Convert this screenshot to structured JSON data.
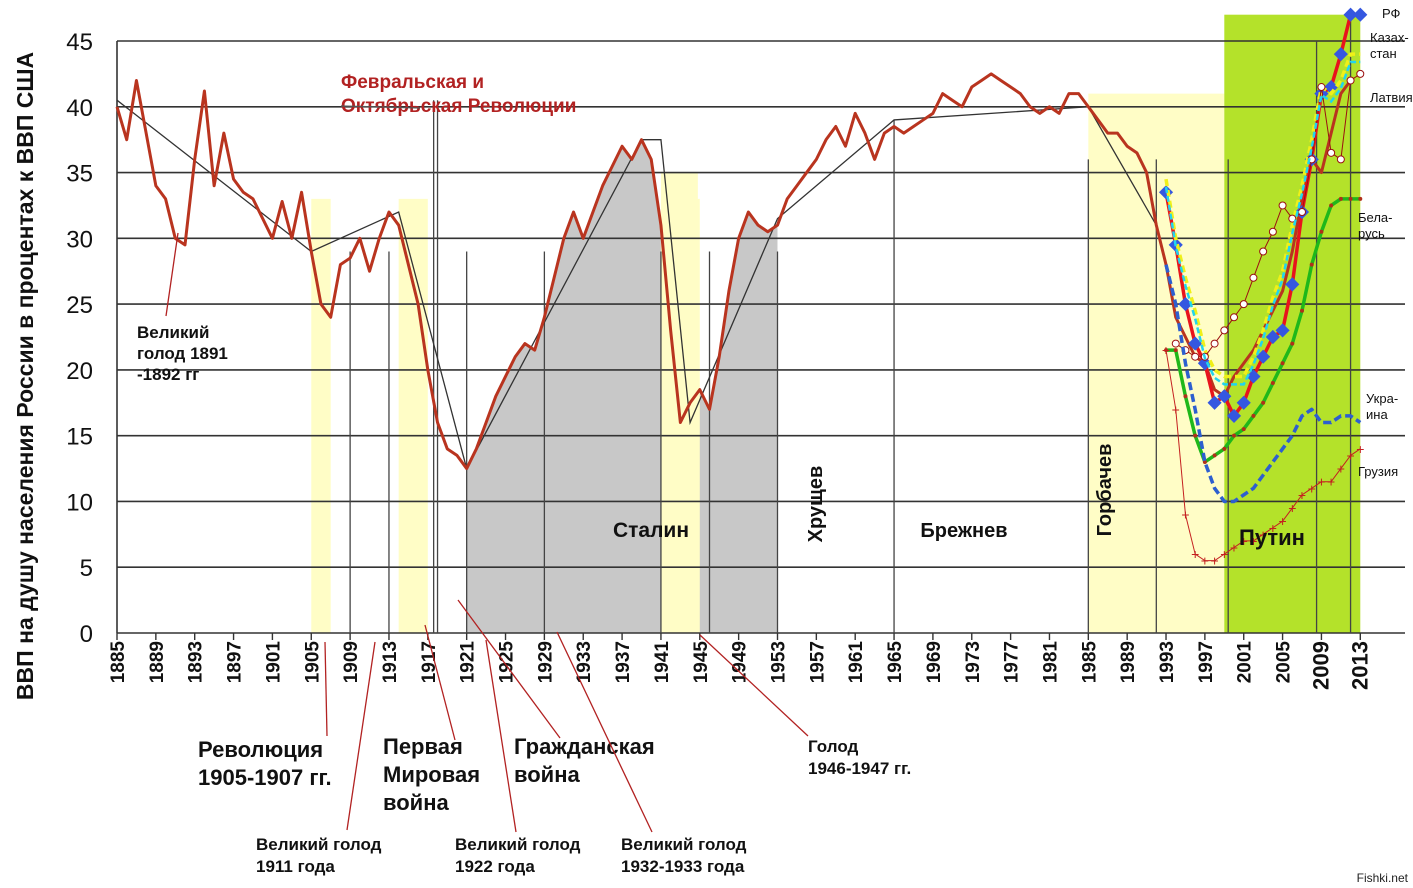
{
  "chart_data": {
    "type": "line",
    "ylabel": "ВВП на душу населения России в процентах к ВВП США",
    "ylim": [
      0,
      45
    ],
    "xlim": [
      1885,
      2014
    ],
    "grid": "horizontal",
    "yticks": [
      0,
      5,
      10,
      15,
      20,
      25,
      30,
      35,
      40,
      45
    ],
    "xticks": [
      1885,
      1889,
      1893,
      1897,
      1901,
      1905,
      1909,
      1913,
      1917,
      1921,
      1925,
      1929,
      1933,
      1937,
      1941,
      1945,
      1949,
      1953,
      1957,
      1961,
      1965,
      1969,
      1973,
      1977,
      1981,
      1985,
      1989,
      1993,
      1997,
      2001,
      2005,
      2009,
      2013
    ],
    "xticks_big": [
      2009,
      2013
    ],
    "series": [
      {
        "name": "Россия",
        "color": "#b9341f",
        "label_shown": false,
        "points": [
          [
            1885,
            40
          ],
          [
            1886,
            37.5
          ],
          [
            1887,
            42
          ],
          [
            1888,
            38
          ],
          [
            1889,
            34
          ],
          [
            1890,
            33
          ],
          [
            1891,
            30
          ],
          [
            1892,
            29.5
          ],
          [
            1893,
            36
          ],
          [
            1894,
            41.2
          ],
          [
            1895,
            34
          ],
          [
            1896,
            38
          ],
          [
            1897,
            34.5
          ],
          [
            1898,
            33.5
          ],
          [
            1899,
            33
          ],
          [
            1900,
            31.5
          ],
          [
            1901,
            30
          ],
          [
            1902,
            32.8
          ],
          [
            1903,
            30
          ],
          [
            1904,
            33.5
          ],
          [
            1905,
            29
          ],
          [
            1906,
            25
          ],
          [
            1907,
            24
          ],
          [
            1908,
            28
          ],
          [
            1909,
            28.5
          ],
          [
            1910,
            30
          ],
          [
            1911,
            27.5
          ],
          [
            1912,
            30
          ],
          [
            1913,
            32
          ],
          [
            1914,
            31
          ],
          [
            1915,
            28
          ],
          [
            1916,
            25
          ],
          [
            1917,
            20
          ],
          [
            1918,
            16
          ],
          [
            1919,
            14
          ],
          [
            1920,
            13.5
          ],
          [
            1921,
            12.5
          ],
          [
            1922,
            14
          ],
          [
            1923,
            16
          ],
          [
            1924,
            18
          ],
          [
            1925,
            19.5
          ],
          [
            1926,
            21
          ],
          [
            1927,
            22
          ],
          [
            1928,
            21.5
          ],
          [
            1929,
            24
          ],
          [
            1930,
            27
          ],
          [
            1931,
            30
          ],
          [
            1932,
            32
          ],
          [
            1933,
            30
          ],
          [
            1934,
            32
          ],
          [
            1935,
            34
          ],
          [
            1936,
            35.5
          ],
          [
            1937,
            37
          ],
          [
            1938,
            36
          ],
          [
            1939,
            37.5
          ],
          [
            1940,
            36
          ],
          [
            1941,
            31
          ],
          [
            1942,
            23
          ],
          [
            1943,
            16
          ],
          [
            1944,
            17.5
          ],
          [
            1945,
            18.5
          ],
          [
            1946,
            17
          ],
          [
            1947,
            21
          ],
          [
            1948,
            26
          ],
          [
            1949,
            30
          ],
          [
            1950,
            32
          ],
          [
            1951,
            31
          ],
          [
            1952,
            30.5
          ],
          [
            1953,
            31
          ],
          [
            1954,
            33
          ],
          [
            1955,
            34
          ],
          [
            1956,
            35
          ],
          [
            1957,
            36
          ],
          [
            1958,
            37.5
          ],
          [
            1959,
            38.5
          ],
          [
            1960,
            37
          ],
          [
            1961,
            39.5
          ],
          [
            1962,
            38
          ],
          [
            1963,
            36
          ],
          [
            1964,
            38
          ],
          [
            1965,
            38.5
          ],
          [
            1966,
            38
          ],
          [
            1967,
            38.5
          ],
          [
            1968,
            39
          ],
          [
            1969,
            39.5
          ],
          [
            1970,
            41
          ],
          [
            1971,
            40.5
          ],
          [
            1972,
            40
          ],
          [
            1973,
            41.5
          ],
          [
            1974,
            42
          ],
          [
            1975,
            42.5
          ],
          [
            1976,
            42
          ],
          [
            1977,
            41.5
          ],
          [
            1978,
            41
          ],
          [
            1979,
            40
          ],
          [
            1980,
            39.5
          ],
          [
            1981,
            40
          ],
          [
            1982,
            39.5
          ],
          [
            1983,
            41
          ],
          [
            1984,
            41
          ],
          [
            1985,
            40
          ],
          [
            1986,
            39
          ],
          [
            1987,
            38
          ],
          [
            1988,
            38
          ],
          [
            1989,
            37
          ],
          [
            1990,
            36.5
          ],
          [
            1991,
            35
          ],
          [
            1992,
            31
          ],
          [
            1993,
            28
          ],
          [
            1994,
            24
          ],
          [
            1995,
            22.5
          ],
          [
            1996,
            21
          ],
          [
            1997,
            20.5
          ],
          [
            1998,
            18.5
          ],
          [
            1999,
            18
          ],
          [
            2000,
            19.5
          ],
          [
            2001,
            20.5
          ],
          [
            2002,
            21.5
          ],
          [
            2003,
            23
          ],
          [
            2004,
            24.5
          ],
          [
            2005,
            26
          ],
          [
            2006,
            29
          ],
          [
            2007,
            33
          ],
          [
            2008,
            36
          ],
          [
            2009,
            35
          ],
          [
            2010,
            38
          ],
          [
            2011,
            41
          ],
          [
            2012,
            42
          ]
        ]
      },
      {
        "name": "РФ",
        "color": "#e8141c",
        "label_shown": true,
        "label": "РФ",
        "points": [
          [
            1993,
            33.5
          ],
          [
            1994,
            29.5
          ],
          [
            1995,
            25
          ],
          [
            1996,
            22
          ],
          [
            1997,
            20.5
          ],
          [
            1998,
            17.5
          ],
          [
            1999,
            18
          ],
          [
            2000,
            16.5
          ],
          [
            2001,
            17.5
          ],
          [
            2002,
            19.5
          ],
          [
            2003,
            21
          ],
          [
            2004,
            22.5
          ],
          [
            2005,
            23
          ],
          [
            2006,
            26.5
          ],
          [
            2007,
            32
          ],
          [
            2008,
            36
          ],
          [
            2009,
            41
          ],
          [
            2010,
            41.5
          ],
          [
            2011,
            44
          ],
          [
            2012,
            47
          ],
          [
            2013,
            47
          ]
        ]
      },
      {
        "name": "Казахстан",
        "color": "#f0f018",
        "label_shown": true,
        "label": "Казах-\nстан",
        "points": [
          [
            1993,
            34.5
          ],
          [
            1994,
            30
          ],
          [
            1995,
            27
          ],
          [
            1996,
            24.5
          ],
          [
            1997,
            21.5
          ],
          [
            1998,
            20
          ],
          [
            1999,
            19.5
          ],
          [
            2000,
            19.5
          ],
          [
            2001,
            19.5
          ],
          [
            2002,
            21
          ],
          [
            2003,
            23
          ],
          [
            2004,
            25.5
          ],
          [
            2005,
            27.5
          ],
          [
            2006,
            31
          ],
          [
            2007,
            34
          ],
          [
            2008,
            37.5
          ],
          [
            2009,
            41.5
          ],
          [
            2010,
            41
          ],
          [
            2011,
            42
          ],
          [
            2012,
            44
          ],
          [
            2013,
            44
          ]
        ]
      },
      {
        "name": "Латвия",
        "color": "#9b1010",
        "label_shown": true,
        "label": "Латвия",
        "points": [
          [
            1994,
            22
          ],
          [
            1995,
            21.5
          ],
          [
            1996,
            21
          ],
          [
            1997,
            21
          ],
          [
            1998,
            22
          ],
          [
            1999,
            23
          ],
          [
            2000,
            24
          ],
          [
            2001,
            25
          ],
          [
            2002,
            27
          ],
          [
            2003,
            29
          ],
          [
            2004,
            30.5
          ],
          [
            2005,
            32.5
          ],
          [
            2006,
            31.5
          ],
          [
            2007,
            32
          ],
          [
            2008,
            36
          ],
          [
            2009,
            41.5
          ],
          [
            2010,
            36.5
          ],
          [
            2011,
            36
          ],
          [
            2012,
            42
          ],
          [
            2013,
            42.5
          ]
        ]
      },
      {
        "name": "Беларусь",
        "color": "#1fb81a",
        "label_shown": true,
        "label": "Бела-\nрусь",
        "points": [
          [
            1993,
            21.5
          ],
          [
            1994,
            21.5
          ],
          [
            1995,
            18
          ],
          [
            1996,
            15
          ],
          [
            1997,
            13
          ],
          [
            1998,
            13.5
          ],
          [
            1999,
            14
          ],
          [
            2000,
            15
          ],
          [
            2001,
            15.5
          ],
          [
            2002,
            16.5
          ],
          [
            2003,
            17.5
          ],
          [
            2004,
            19
          ],
          [
            2005,
            20.5
          ],
          [
            2006,
            22
          ],
          [
            2007,
            24.5
          ],
          [
            2008,
            28
          ],
          [
            2009,
            30.5
          ],
          [
            2010,
            32.5
          ],
          [
            2011,
            33
          ],
          [
            2012,
            33
          ],
          [
            2013,
            33
          ]
        ]
      },
      {
        "name": "Украина",
        "color": "#2d5fcf",
        "label_shown": true,
        "label": "Укра-\nина",
        "points": [
          [
            1993,
            28
          ],
          [
            1994,
            25
          ],
          [
            1995,
            20.5
          ],
          [
            1996,
            17
          ],
          [
            1997,
            13
          ],
          [
            1998,
            11
          ],
          [
            1999,
            10
          ],
          [
            2000,
            10
          ],
          [
            2001,
            10.5
          ],
          [
            2002,
            11
          ],
          [
            2003,
            12
          ],
          [
            2004,
            13
          ],
          [
            2005,
            14
          ],
          [
            2006,
            15
          ],
          [
            2007,
            16.5
          ],
          [
            2008,
            17
          ],
          [
            2009,
            16
          ],
          [
            2010,
            16
          ],
          [
            2011,
            16.5
          ],
          [
            2012,
            16.5
          ],
          [
            2013,
            16
          ]
        ]
      },
      {
        "name": "Грузия",
        "color": "#c42020",
        "label_shown": true,
        "label": "Грузия",
        "points": [
          [
            1993,
            21.5
          ],
          [
            1994,
            17
          ],
          [
            1995,
            9
          ],
          [
            1996,
            6
          ],
          [
            1997,
            5.5
          ],
          [
            1998,
            5.5
          ],
          [
            1999,
            6
          ],
          [
            2000,
            6.5
          ],
          [
            2001,
            7
          ],
          [
            2002,
            7
          ],
          [
            2003,
            7.5
          ],
          [
            2004,
            8
          ],
          [
            2005,
            8.5
          ],
          [
            2006,
            9.5
          ],
          [
            2007,
            10.5
          ],
          [
            2008,
            11
          ],
          [
            2009,
            11.5
          ],
          [
            2010,
            11.5
          ],
          [
            2011,
            12.5
          ],
          [
            2012,
            13.5
          ],
          [
            2013,
            14
          ]
        ]
      }
    ],
    "trend_points": [
      [
        1885,
        40.5
      ],
      [
        1905,
        29
      ],
      [
        1914,
        32
      ],
      [
        1921,
        12.5
      ],
      [
        1939,
        37.5
      ],
      [
        1941,
        37.5
      ],
      [
        1944,
        16
      ],
      [
        1953,
        31.5
      ],
      [
        1965,
        39
      ],
      [
        1985,
        40
      ],
      [
        1992,
        31
      ]
    ],
    "shaded_regions": [
      {
        "from": 1921,
        "to": 1953,
        "color": "#c8c8c8",
        "label": "Сталин"
      },
      {
        "from": 1905,
        "to": 1907,
        "color": "#fffdc6"
      },
      {
        "from": 1914,
        "to": 1917,
        "color": "#fffdc6"
      },
      {
        "from": 1941,
        "to": 1945,
        "color": "#fffdc6"
      },
      {
        "from": 1985,
        "to": 1999,
        "color": "#fffdc6",
        "label": "Горбачев"
      },
      {
        "from": 1999,
        "to": 2013,
        "color": "#b4e22a",
        "label": "Путин"
      }
    ],
    "era_labels": [
      "Хрущев",
      "Брежнев"
    ],
    "top_annotation": "Февральская и\nОктябрьская Революции",
    "annotations": [
      {
        "label": "Великий\nголод 1891\n-1892 гг",
        "year": 1892
      },
      {
        "label": "Революция\n1905-1907 гг.",
        "year": 1906
      },
      {
        "label": "Великий голод\n1911 года",
        "year": 1911
      },
      {
        "label": "Первая\nМировая\nвойна",
        "year": 1916
      },
      {
        "label": "Гражданская\nвойна",
        "year": 1921
      },
      {
        "label": "Великий голод\n1922 года",
        "year": 1922
      },
      {
        "label": "Великий голод\n1932-1933 года",
        "year": 1932
      },
      {
        "label": "Голод\n1946-1947 гг.",
        "year": 1946
      }
    ]
  },
  "watermark": "Fishki.net"
}
